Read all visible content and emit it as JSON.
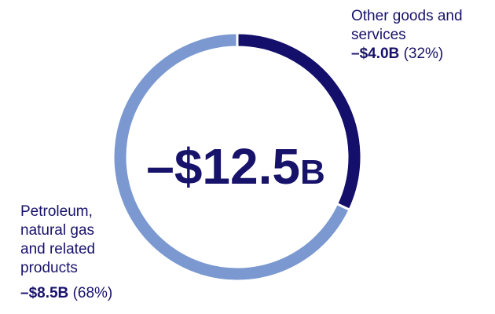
{
  "chart_data": {
    "type": "donut",
    "center_label": {
      "amount": "–$12.5",
      "suffix": "B"
    },
    "categories": [
      "Other goods and services",
      "Petroleum, natural gas and related products"
    ],
    "values": [
      32,
      68
    ],
    "value_labels": [
      "(32%)",
      "(68%)"
    ],
    "amount_labels": [
      "–$4.0B",
      "–$8.5B"
    ],
    "colors": [
      "#130f6b",
      "#7b99d0"
    ]
  }
}
